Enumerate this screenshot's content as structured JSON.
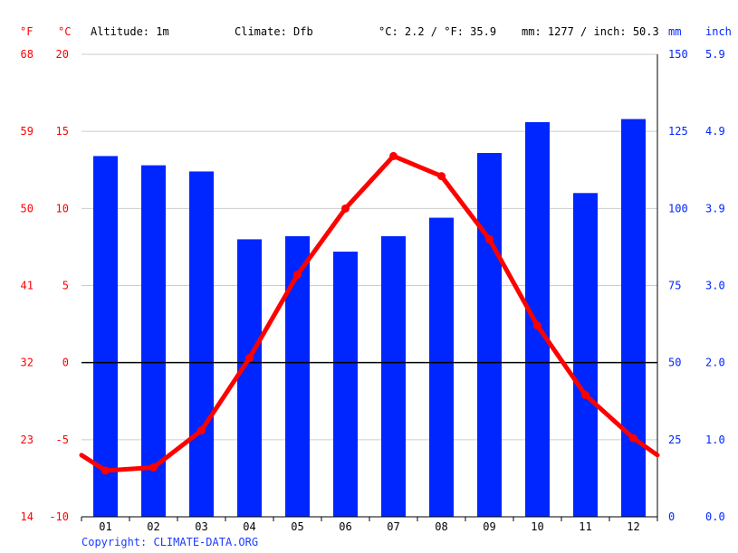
{
  "header": {
    "unit_f": "°F",
    "unit_c": "°C",
    "altitude": "Altitude: 1m",
    "climate": "Climate: Dfb",
    "temp_avg": "°C: 2.2 / °F: 35.9",
    "precip_total": "mm: 1277 / inch: 50.3",
    "unit_mm": "mm",
    "unit_inch": "inch"
  },
  "copyright": "Copyright: CLIMATE-DATA.ORG",
  "chart_data": {
    "type": "bar+line",
    "categories": [
      "01",
      "02",
      "03",
      "04",
      "05",
      "06",
      "07",
      "08",
      "09",
      "10",
      "11",
      "12"
    ],
    "series": [
      {
        "type": "bar",
        "axis": "precipitation_mm",
        "values": [
          117,
          114,
          112,
          90,
          91,
          86,
          91,
          97,
          118,
          128,
          105,
          129
        ]
      },
      {
        "type": "line",
        "axis": "temperature_c",
        "values": [
          -7.0,
          -6.8,
          -4.4,
          0.3,
          5.7,
          10.0,
          13.4,
          12.1,
          8.0,
          2.4,
          -2.1,
          -4.9
        ]
      }
    ],
    "line_extension": {
      "start": -6.0,
      "end": -6.0
    },
    "axes": {
      "left_c": {
        "ylim": [
          -10,
          20
        ],
        "ticks": [
          -10,
          -5,
          0,
          5,
          10,
          15,
          20
        ]
      },
      "left_f": {
        "ticks": [
          14,
          23,
          32,
          41,
          50,
          59,
          68
        ]
      },
      "right_mm": {
        "ylim": [
          0,
          150
        ],
        "ticks": [
          0,
          25,
          50,
          75,
          100,
          125,
          150
        ]
      },
      "right_inch": {
        "ticks": [
          "0.0",
          "1.0",
          "2.0",
          "3.0",
          "3.9",
          "4.9",
          "5.9"
        ]
      }
    },
    "colors": {
      "bar": "#0026ff",
      "line": "#ff0000",
      "grid": "#cccccc",
      "zero_line": "#000000",
      "red_text": "#ff0000",
      "blue_text": "#0026ff"
    },
    "grid": true
  }
}
